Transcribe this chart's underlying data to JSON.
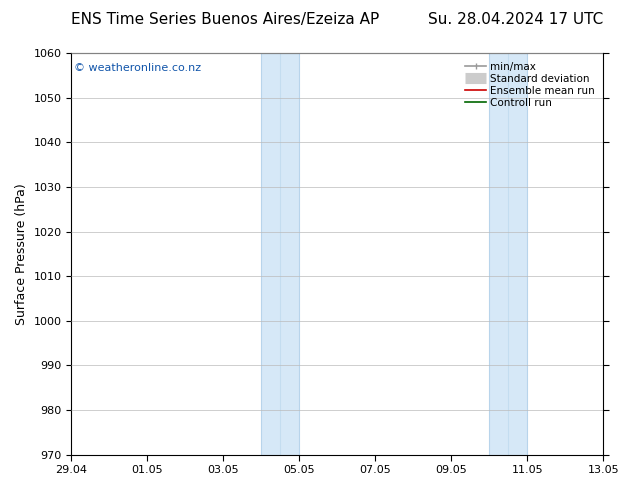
{
  "title_left": "ENS Time Series Buenos Aires/Ezeiza AP",
  "title_right": "Su. 28.04.2024 17 UTC",
  "ylabel": "Surface Pressure (hPa)",
  "ylim": [
    970,
    1060
  ],
  "yticks": [
    970,
    980,
    990,
    1000,
    1010,
    1020,
    1030,
    1040,
    1050,
    1060
  ],
  "xtick_labels": [
    "29.04",
    "01.05",
    "03.05",
    "05.05",
    "07.05",
    "09.05",
    "11.05",
    "13.05"
  ],
  "xtick_positions": [
    0,
    2,
    4,
    6,
    8,
    10,
    12,
    14
  ],
  "xlim_start": 0,
  "xlim_end": 14,
  "shaded_bands": [
    {
      "x_start": 5.0,
      "x_end": 6.0
    },
    {
      "x_start": 11.0,
      "x_end": 12.0
    }
  ],
  "shaded_color": "#d6e8f7",
  "shaded_edge_color": "#b8d4eb",
  "shaded_mid_line_color": "#c4ddf0",
  "watermark_text": "© weatheronline.co.nz",
  "watermark_color": "#1155aa",
  "legend_items": [
    {
      "label": "min/max",
      "color": "#999999",
      "lw": 1.2
    },
    {
      "label": "Standard deviation",
      "color": "#cccccc",
      "lw": 8
    },
    {
      "label": "Ensemble mean run",
      "color": "#cc0000",
      "lw": 1.2
    },
    {
      "label": "Controll run",
      "color": "#006600",
      "lw": 1.2
    }
  ],
  "background_color": "#ffffff",
  "plot_bg_color": "#ffffff",
  "grid_color": "#bbbbbb",
  "title_fontsize": 11,
  "ylabel_fontsize": 9,
  "tick_fontsize": 8,
  "legend_fontsize": 7.5,
  "watermark_fontsize": 8
}
